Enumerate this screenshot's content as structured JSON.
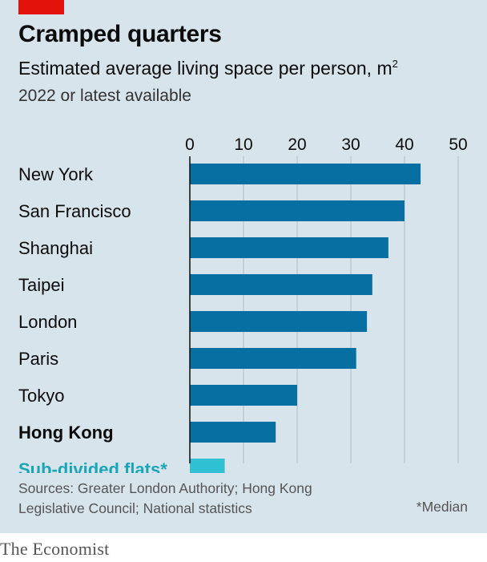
{
  "header": {
    "title": "Cramped quarters",
    "subtitle": "Estimated average living space per person, m",
    "subtitle_sup": "2",
    "subtitle2": "2022 or latest available"
  },
  "footer": {
    "sources_line1": "Sources: Greater London Authority; Hong Kong",
    "sources_line2": "Legislative Council; National statistics",
    "median_note": "*Median",
    "brand": "The Economist"
  },
  "colors": {
    "background": "#d7e4ec",
    "bar": "#076fa1",
    "highlight_bar": "#2fc1d3",
    "highlight_label": "#1aa6b7",
    "grid": "#b5c4cf",
    "axis": "#0c0c0c",
    "accent": "#e3120b"
  },
  "chart_data": {
    "type": "bar",
    "orientation": "horizontal",
    "categories": [
      "New York",
      "San Francisco",
      "Shanghai",
      "Taipei",
      "London",
      "Paris",
      "Tokyo",
      "Hong Kong",
      "Sub-divided flats*"
    ],
    "values": [
      43,
      40,
      37,
      34,
      33,
      31,
      20,
      16,
      6.5
    ],
    "bold_categories": [
      "Hong Kong"
    ],
    "highlight_categories": [
      "Sub-divided flats*"
    ],
    "xlim": [
      0,
      50
    ],
    "xticks": [
      0,
      10,
      20,
      30,
      40,
      50
    ],
    "tick_position": "top",
    "grid": true
  }
}
